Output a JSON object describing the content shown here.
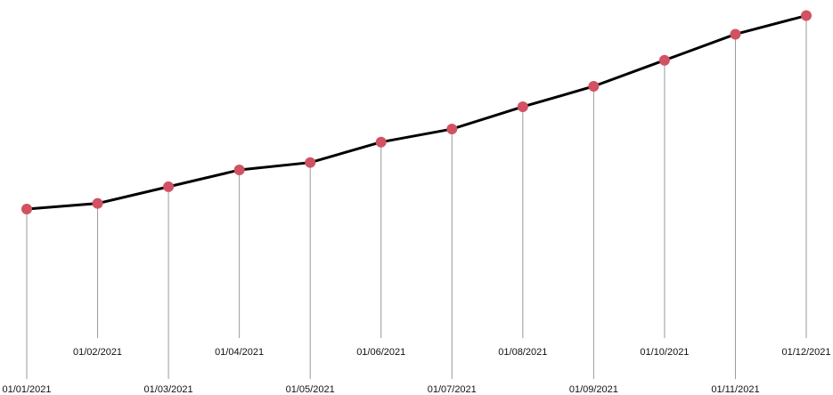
{
  "chart_data": {
    "type": "line",
    "x": [
      "01/01/2021",
      "01/02/2021",
      "01/03/2021",
      "01/04/2021",
      "01/05/2021",
      "01/06/2021",
      "01/07/2021",
      "01/08/2021",
      "01/09/2021",
      "01/10/2021",
      "01/11/2021",
      "01/12/2021"
    ],
    "series": [
      {
        "values": [
          100,
          103,
          112,
          121,
          125,
          136,
          143,
          155,
          166,
          180,
          194,
          204
        ]
      }
    ],
    "ylim": [
      0,
      210
    ],
    "grid": false,
    "label_pattern": "alternating-low-high",
    "colors": {
      "line": "#000000",
      "marker": "#d05263",
      "drop_line": "#9a9a9a"
    }
  }
}
